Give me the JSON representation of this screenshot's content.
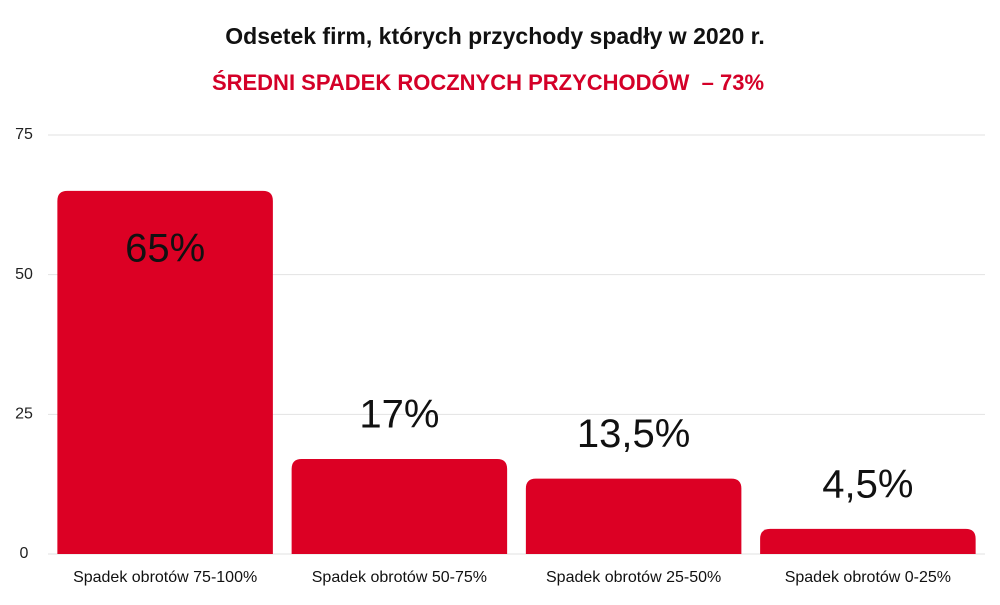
{
  "chart_data": {
    "type": "bar",
    "title": "Odsetek firm, których przychody spadły w 2020 r.",
    "subtitle": "ŚREDNI SPADEK ROCZNYCH PRZYCHODÓW  – 73%",
    "categories": [
      "Spadek obrotów 75-100%",
      "Spadek obrotów 50-75%",
      "Spadek obrotów 25-50%",
      "Spadek obrotów 0-25%"
    ],
    "values": [
      65,
      17,
      13.5,
      4.5
    ],
    "value_labels": [
      "65%",
      "17%",
      "13,5%",
      "4,5%"
    ],
    "color": "#dc0024",
    "ylim": [
      0,
      75
    ],
    "yticks": [
      0,
      25,
      50,
      75
    ],
    "grid": true
  }
}
